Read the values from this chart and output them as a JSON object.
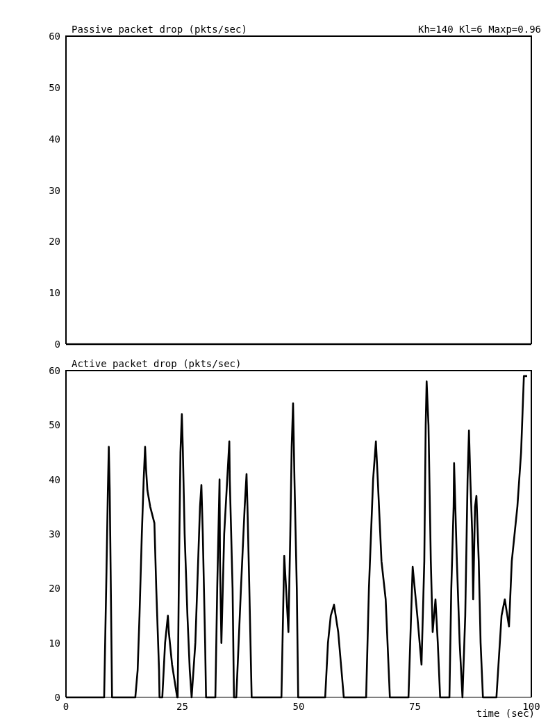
{
  "chart_data": [
    {
      "type": "line",
      "title": "Passive packet drop (pkts/sec)",
      "annotations": [
        "Kh=140 Kl=6 Maxp=0.96"
      ],
      "x": [
        0,
        100
      ],
      "values": [
        0,
        0
      ],
      "color": "#000000",
      "xlim": [
        0,
        100
      ],
      "xticks": [
        0,
        25,
        50,
        75,
        100
      ],
      "ylim": [
        0,
        60
      ],
      "yticks": [
        0,
        10,
        20,
        30,
        40,
        50,
        60
      ],
      "tick_labels": "y",
      "grid": false
    },
    {
      "type": "line",
      "title": "Active packet drop (pkts/sec)",
      "xlabel": "time (sec)",
      "color": "#000000",
      "x": [
        0,
        8.2,
        8.7,
        9.0,
        9.2,
        9.4,
        9.6,
        9.9,
        14.9,
        15.4,
        15.8,
        16.3,
        16.7,
        17.0,
        17.2,
        17.5,
        18.1,
        19.0,
        19.4,
        20.0,
        20.1,
        20.7,
        21.3,
        21.9,
        22.1,
        22.8,
        23.9,
        24.0,
        24.3,
        24.6,
        24.9,
        25.1,
        25.5,
        26.1,
        26.6,
        27.0,
        27.8,
        28.4,
        28.8,
        29.1,
        29.4,
        29.9,
        30.1,
        32.1,
        32.5,
        33.0,
        33.1,
        33.4,
        34.0,
        35.1,
        35.2,
        35.8,
        36.1,
        36.6,
        37.6,
        38.4,
        38.8,
        39.0,
        39.4,
        39.9,
        46.3,
        46.9,
        47.3,
        47.8,
        48.2,
        48.5,
        48.8,
        49.1,
        49.6,
        49.9,
        55.7,
        56.3,
        56.9,
        57.6,
        58.5,
        59.7,
        64.5,
        65.1,
        66.0,
        66.6,
        67.0,
        67.8,
        68.7,
        69.6,
        73.6,
        74.5,
        75.5,
        76.4,
        77.0,
        77.3,
        77.5,
        77.9,
        78.4,
        78.8,
        79.4,
        79.9,
        80.4,
        82.4,
        82.8,
        83.3,
        83.4,
        84.0,
        84.6,
        85.2,
        85.8,
        86.3,
        86.6,
        86.9,
        87.3,
        87.5,
        87.9,
        88.2,
        88.7,
        89.1,
        89.6,
        92.5,
        93.6,
        94.3,
        95.2,
        95.8,
        97.0,
        97.8,
        98.4,
        99.1
      ],
      "values": [
        0,
        0,
        23,
        38,
        46,
        38,
        23,
        0,
        0,
        5,
        15,
        30,
        40,
        46,
        42,
        38,
        35,
        32,
        20,
        5,
        0,
        0,
        10,
        15,
        12,
        6,
        0,
        0,
        25,
        45,
        52,
        46,
        30,
        15,
        5,
        0,
        10,
        25,
        35,
        39,
        30,
        10,
        0,
        0,
        20,
        40,
        25,
        10,
        30,
        47,
        40,
        20,
        0,
        0,
        20,
        35,
        41,
        35,
        20,
        0,
        0,
        26,
        20,
        12,
        30,
        46,
        54,
        40,
        20,
        0,
        0,
        10,
        15,
        17,
        12,
        0,
        0,
        20,
        40,
        47,
        40,
        25,
        18,
        0,
        0,
        24,
        15,
        6,
        25,
        50,
        58,
        50,
        25,
        12,
        18,
        10,
        0,
        0,
        20,
        35,
        43,
        25,
        10,
        0,
        15,
        40,
        49,
        40,
        30,
        18,
        35,
        37,
        25,
        10,
        0,
        0,
        15,
        18,
        13,
        25,
        35,
        45,
        59,
        59
      ],
      "xlim": [
        0,
        100
      ],
      "xticks": [
        0,
        25,
        50,
        75,
        100
      ],
      "ylim": [
        0,
        60
      ],
      "yticks": [
        0,
        10,
        20,
        30,
        40,
        50,
        60
      ],
      "grid": false
    }
  ]
}
